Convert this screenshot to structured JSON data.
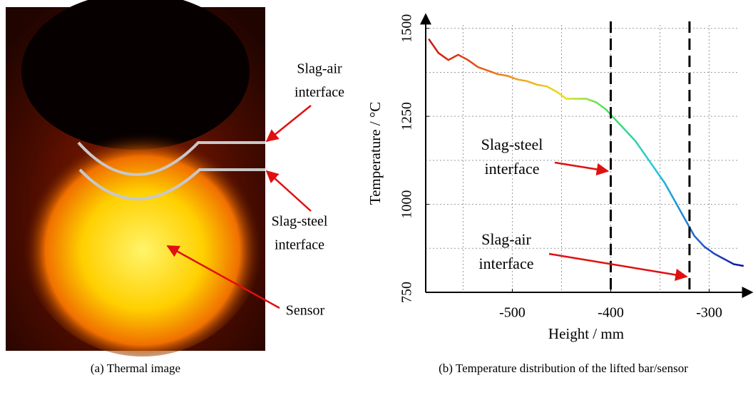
{
  "panel_a": {
    "labels": [
      [
        "Slag-air",
        "interface"
      ],
      [
        "Slag-steel",
        "interface"
      ],
      [
        "Sensor"
      ]
    ]
  },
  "captions": [
    "(a) Thermal image",
    "(b) Temperature distribution of the lifted bar/sensor"
  ],
  "chart_data": {
    "type": "line",
    "xlabel": "Height / mm",
    "ylabel": "Temperature / °C",
    "x": [
      -585,
      -575,
      -565,
      -555,
      -545,
      -535,
      -525,
      -515,
      -505,
      -495,
      -485,
      -475,
      -465,
      -455,
      -445,
      -435,
      -425,
      -415,
      -405,
      -395,
      -385,
      -375,
      -365,
      -355,
      -345,
      -335,
      -325,
      -315,
      -305,
      -295,
      -285,
      -275,
      -265
    ],
    "values": [
      1470,
      1430,
      1410,
      1425,
      1410,
      1390,
      1380,
      1370,
      1365,
      1355,
      1350,
      1340,
      1335,
      1320,
      1300,
      1300,
      1300,
      1290,
      1270,
      1240,
      1210,
      1180,
      1140,
      1100,
      1060,
      1010,
      960,
      910,
      880,
      860,
      845,
      830,
      825
    ],
    "colors": [
      "#d01010",
      "#e84a10",
      "#f0a020",
      "#e8e020",
      "#40e060",
      "#20c8e0",
      "#2060d0",
      "#1010a0"
    ],
    "xlim": [
      -588,
      -262
    ],
    "ylim": [
      750,
      1540
    ],
    "xticks": [
      -500,
      -400,
      -300
    ],
    "yticks": [
      750,
      1000,
      1250,
      1500
    ],
    "xgrid": [
      -550,
      -500,
      -450,
      -400,
      -350,
      -300
    ],
    "ygrid": [
      875,
      1000,
      1125,
      1250,
      1375,
      1500
    ],
    "markers": [
      -400,
      -320
    ],
    "annotations": [
      [
        "Slag-steel",
        "interface"
      ],
      [
        "Slag-air",
        "interface"
      ]
    ]
  }
}
